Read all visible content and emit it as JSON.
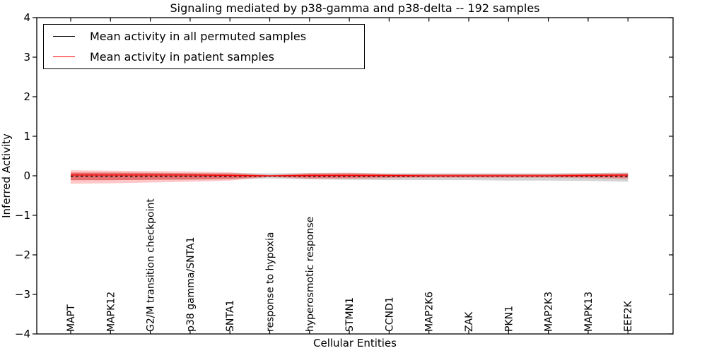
{
  "title": "Signaling mediated by p38-gamma and p38-delta -- 192 samples",
  "chart_data": {
    "type": "line",
    "title": "Signaling mediated by p38-gamma and p38-delta -- 192 samples",
    "xlabel": "Cellular Entities",
    "ylabel": "Inferred Activity",
    "ylim": [
      -4,
      4
    ],
    "y_ticks": [
      4,
      3,
      2,
      1,
      0,
      -1,
      -2,
      -3,
      -4
    ],
    "grid": false,
    "legend_position": "upper left",
    "categories": [
      "MAPT",
      "MAPK12",
      "G2/M transition checkpoint",
      "p38 gamma/SNTA1",
      "SNTA1",
      "response to hypoxia",
      "hyperosmotic response",
      "STMN1",
      "CCND1",
      "MAP2K6",
      "ZAK",
      "PKN1",
      "MAP2K3",
      "MAPK13",
      "EEF2K"
    ],
    "legend": [
      {
        "label": "Mean activity in all permuted samples",
        "color": "#000000",
        "style": "dashed"
      },
      {
        "label": "Mean activity in patient samples",
        "color": "#ff0000",
        "style": "solid"
      }
    ],
    "series": [
      {
        "name": "Mean activity in all permuted samples",
        "color": "#000000",
        "style": "dashed",
        "values": [
          -0.01,
          -0.01,
          -0.01,
          -0.01,
          -0.01,
          -0.01,
          -0.01,
          -0.01,
          -0.01,
          -0.01,
          -0.01,
          -0.01,
          -0.01,
          -0.01,
          -0.01
        ]
      },
      {
        "name": "Mean activity in patient samples",
        "color": "#ff0000",
        "style": "solid",
        "values": [
          0.02,
          0.02,
          0.02,
          0.02,
          0.01,
          0.0,
          0.01,
          0.01,
          0.01,
          0.0,
          0.0,
          0.0,
          0.0,
          0.01,
          0.02
        ]
      }
    ],
    "bands": [
      {
        "name": "permuted-samples-std-band",
        "color": "#c8c8c8",
        "opacity": 0.8,
        "upper": [
          0.08,
          0.08,
          0.08,
          0.07,
          0.07,
          0.06,
          0.07,
          0.07,
          0.06,
          0.06,
          0.06,
          0.06,
          0.06,
          0.07,
          0.08
        ],
        "lower": [
          -0.11,
          -0.11,
          -0.1,
          -0.1,
          -0.09,
          -0.07,
          -0.09,
          -0.1,
          -0.11,
          -0.11,
          -0.11,
          -0.12,
          -0.12,
          -0.13,
          -0.15
        ]
      },
      {
        "name": "patient-samples-std-outer-band",
        "color": "#ff0000",
        "opacity": 0.22,
        "upper": [
          0.14,
          0.13,
          0.12,
          0.11,
          0.09,
          0.02,
          0.07,
          0.08,
          0.05,
          0.05,
          0.05,
          0.05,
          0.05,
          0.06,
          0.07
        ],
        "lower": [
          -0.2,
          -0.19,
          -0.17,
          -0.15,
          -0.12,
          -0.03,
          -0.08,
          -0.08,
          -0.06,
          -0.05,
          -0.05,
          -0.05,
          -0.05,
          -0.06,
          -0.08
        ]
      },
      {
        "name": "patient-samples-std-inner-band",
        "color": "#ff0000",
        "opacity": 0.33,
        "upper": [
          0.08,
          0.08,
          0.07,
          0.06,
          0.05,
          0.01,
          0.04,
          0.05,
          0.03,
          0.03,
          0.03,
          0.03,
          0.03,
          0.04,
          0.04
        ],
        "lower": [
          -0.11,
          -0.11,
          -0.1,
          -0.09,
          -0.07,
          -0.02,
          -0.05,
          -0.05,
          -0.04,
          -0.03,
          -0.03,
          -0.03,
          -0.03,
          -0.04,
          -0.05
        ]
      }
    ]
  }
}
